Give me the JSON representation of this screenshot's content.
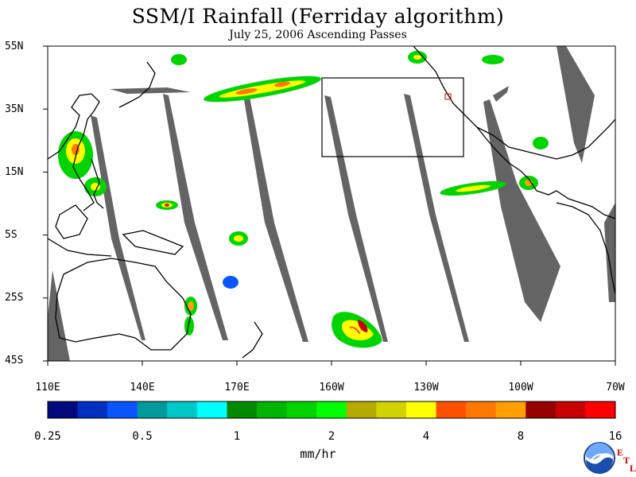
{
  "title": "SSM/I Rainfall (Ferriday algorithm)",
  "subtitle": "July 25, 2006  Ascending Passes",
  "lat_labels": [
    "55N",
    "35N",
    "15N",
    "5S",
    "25S",
    "45S"
  ],
  "lon_labels": [
    "110E",
    "140E",
    "170E",
    "160W",
    "130W",
    "100W",
    "70W"
  ],
  "colorbar": {
    "colors": [
      "#000a7a",
      "#0030c0",
      "#0a55ff",
      "#009a9a",
      "#00c8c8",
      "#00ffff",
      "#008a00",
      "#00b400",
      "#00d400",
      "#00ff00",
      "#b4aa00",
      "#d2d200",
      "#ffff00",
      "#ff5000",
      "#ff7800",
      "#ffa000",
      "#960000",
      "#c80000",
      "#ff0000"
    ],
    "tick_labels": [
      "0.25",
      "0.5",
      "1",
      "2",
      "4",
      "8",
      "16"
    ],
    "units": "mm/hr"
  },
  "logo": {
    "name": "NOAA",
    "mark": [
      "E",
      "T",
      "L"
    ]
  },
  "colors": {
    "swath_gap": "#646464",
    "coast": "#000000"
  }
}
